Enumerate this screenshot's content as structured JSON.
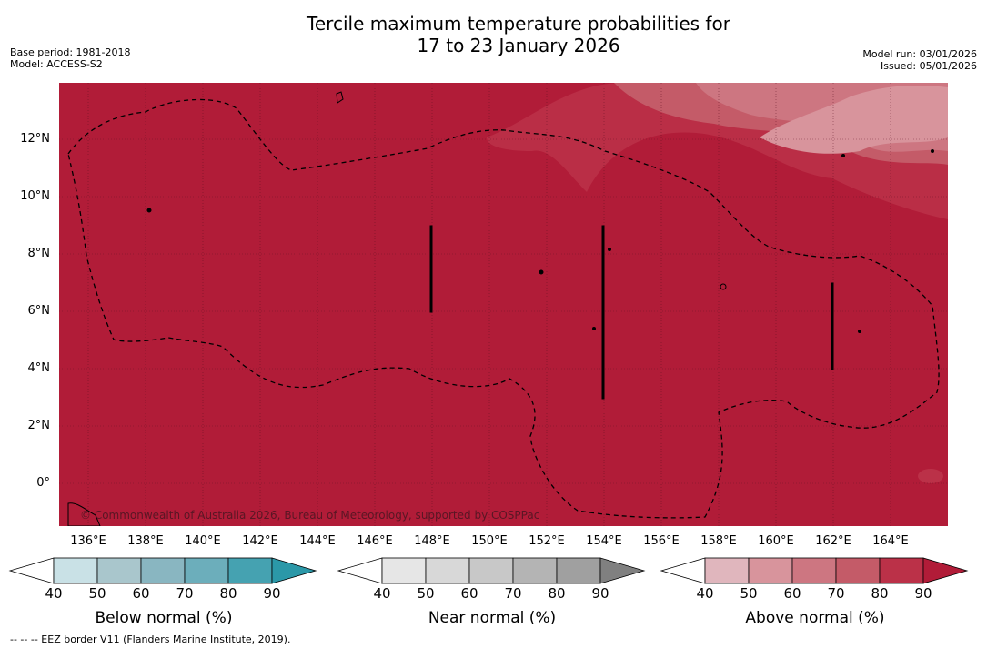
{
  "title_line1": "Tercile maximum temperature probabilities for",
  "title_line2": "17 to 23 January 2026",
  "base_period": "Base period: 1981-2018",
  "model": "Model: ACCESS-S2",
  "model_run": "Model run: 03/01/2026",
  "issued": "Issued: 05/01/2026",
  "lat_labels": [
    "12°N",
    "10°N",
    "8°N",
    "6°N",
    "4°N",
    "2°N",
    "0°"
  ],
  "lon_labels": [
    "136°E",
    "138°E",
    "140°E",
    "142°E",
    "144°E",
    "146°E",
    "148°E",
    "150°E",
    "152°E",
    "154°E",
    "156°E",
    "158°E",
    "160°E",
    "162°E",
    "164°E"
  ],
  "copyright": "© Commonwealth of Australia 2026, Bureau of Meteorology, supported by COSPPac",
  "colorbars": [
    {
      "title": "Below normal (%)",
      "ticks": [
        "40",
        "50",
        "60",
        "70",
        "80",
        "90"
      ],
      "colors": [
        "#c9e1e6",
        "#a9c6cc",
        "#89b6c1",
        "#6caebb",
        "#45a2b1",
        "#2b98a8"
      ]
    },
    {
      "title": "Near normal (%)",
      "ticks": [
        "40",
        "50",
        "60",
        "70",
        "80",
        "90"
      ],
      "colors": [
        "#e6e6e6",
        "#d8d8d8",
        "#c8c8c8",
        "#b4b4b4",
        "#a0a0a0",
        "#808080"
      ]
    },
    {
      "title": "Above normal (%)",
      "ticks": [
        "40",
        "50",
        "60",
        "70",
        "80",
        "90"
      ],
      "colors": [
        "#e0b6bd",
        "#d8949c",
        "#cd7681",
        "#c45b68",
        "#bb3148",
        "#b11c38"
      ]
    }
  ],
  "footnote": "--  --  -- EEZ border V11 (Flanders Marine Institute, 2019)."
}
